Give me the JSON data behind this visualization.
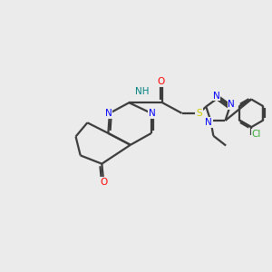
{
  "background_color": "#ebebeb",
  "bond_color": "#3d3d3d",
  "bond_lw": 1.6,
  "N_color": "#0000ff",
  "O_color": "#ff0000",
  "S_color": "#cccc00",
  "Cl_color": "#33aa33",
  "NH_color": "#008080",
  "xlim": [
    -4.5,
    5.2
  ],
  "ylim": [
    -3.0,
    2.8
  ],
  "figsize": [
    3.0,
    3.0
  ],
  "dpi": 100
}
